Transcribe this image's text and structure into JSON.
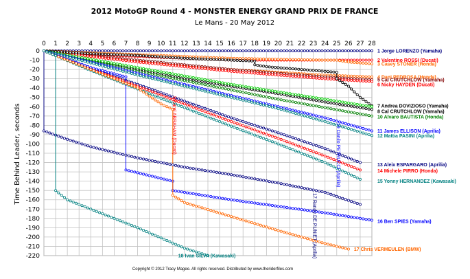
{
  "chart_data": {
    "type": "line",
    "title": "2012 MotoGP Round 4 - MONSTER ENERGY GRAND PRIX DE FRANCE",
    "subtitle": "Le Mans - 20 May 2012",
    "ylabel": "Time Behind Leader, seconds",
    "xlabel": "",
    "xlim": [
      0,
      28
    ],
    "ylim": [
      -220,
      0
    ],
    "x_ticks": [
      "0",
      "1",
      "2",
      "3",
      "4",
      "5",
      "6",
      "7",
      "8",
      "9",
      "10",
      "11",
      "12",
      "13",
      "14",
      "15",
      "16",
      "17",
      "18",
      "19",
      "20",
      "21",
      "22",
      "23",
      "24",
      "25",
      "26",
      "27",
      "28"
    ],
    "y_ticks": [
      "0",
      "-10",
      "-20",
      "-30",
      "-40",
      "-50",
      "-60",
      "-70",
      "-80",
      "-90",
      "-100",
      "-110",
      "-120",
      "-130",
      "-140",
      "-150",
      "-160",
      "-170",
      "-180",
      "-190",
      "-200",
      "-210",
      "-220"
    ],
    "grid": true,
    "legend_placement": "right, at end of each line",
    "footer": "Copyright © 2012 Tracy Magee. All rights reserved. Distributed by www.theriderfiles.com",
    "series": [
      {
        "name": "1 Jorge LORENZO (Yamaha)",
        "color": "#000080",
        "label_lap": 28,
        "label_value": 0,
        "points": [
          [
            0,
            0
          ],
          [
            28,
            0
          ]
        ]
      },
      {
        "name": "2 Valentino ROSSI (Ducati)",
        "color": "#ff0000",
        "label_lap": 28,
        "label_value": -10,
        "points": [
          [
            0,
            0
          ],
          [
            4,
            -4
          ],
          [
            8,
            -6
          ],
          [
            12,
            -8
          ],
          [
            16,
            -10
          ],
          [
            20,
            -10
          ],
          [
            24,
            -10
          ],
          [
            28,
            -10
          ]
        ]
      },
      {
        "name": "3 Casey STONER (Honda)",
        "color": "#ff6600",
        "label_lap": 28,
        "label_value": -14,
        "points": [
          [
            0,
            0
          ],
          [
            4,
            -2
          ],
          [
            8,
            -4
          ],
          [
            12,
            -6
          ],
          [
            16,
            -8
          ],
          [
            20,
            -9
          ],
          [
            24,
            -10
          ],
          [
            25,
            -10
          ],
          [
            26,
            -12
          ],
          [
            28,
            -14
          ]
        ]
      },
      {
        "name": "4 Dani PEDROSA (Honda)",
        "color": "#ff6600",
        "label_lap": 28,
        "label_value": -28,
        "points": [
          [
            0,
            0
          ],
          [
            4,
            -6
          ],
          [
            8,
            -11
          ],
          [
            12,
            -16
          ],
          [
            16,
            -20
          ],
          [
            20,
            -23
          ],
          [
            24,
            -26
          ],
          [
            28,
            -28
          ]
        ]
      },
      {
        "name": "5 Cal CRUTCHLOW (Yamaha)",
        "color": "#800000",
        "label_lap": 28,
        "label_value": -31,
        "points": [
          [
            0,
            0
          ],
          [
            4,
            -5
          ],
          [
            8,
            -10
          ],
          [
            12,
            -15
          ],
          [
            16,
            -20
          ],
          [
            20,
            -24
          ],
          [
            24,
            -28
          ],
          [
            28,
            -31
          ]
        ]
      },
      {
        "name": "6 Nicky HAYDEN (Ducati)",
        "color": "#ff0000",
        "label_lap": 28,
        "label_value": -36,
        "points": [
          [
            0,
            0
          ],
          [
            4,
            -6
          ],
          [
            8,
            -12
          ],
          [
            12,
            -17
          ],
          [
            16,
            -22
          ],
          [
            20,
            -26
          ],
          [
            24,
            -30
          ],
          [
            28,
            -33
          ]
        ]
      },
      {
        "name": "7 Andrea DOVIZIOSO (Yamaha)",
        "color": "#000000",
        "label_lap": 28,
        "label_value": -59,
        "points": [
          [
            0,
            0
          ],
          [
            4,
            -3
          ],
          [
            8,
            -5
          ],
          [
            12,
            -8
          ],
          [
            16,
            -10
          ],
          [
            18,
            -11
          ],
          [
            18,
            -15
          ],
          [
            19,
            -17
          ],
          [
            25,
            -23
          ],
          [
            25,
            -30
          ],
          [
            26,
            -38
          ],
          [
            27,
            -50
          ],
          [
            28,
            -59
          ]
        ]
      },
      {
        "name": "8 Cal CRUTCHLOW (Yamaha)",
        "color": "#000000",
        "label_lap": 28,
        "label_value": -65,
        "points": [
          [
            0,
            0
          ],
          [
            4,
            -10
          ],
          [
            8,
            -20
          ],
          [
            12,
            -30
          ],
          [
            16,
            -38
          ],
          [
            20,
            -46
          ],
          [
            24,
            -55
          ],
          [
            28,
            -63
          ]
        ]
      },
      {
        "name": "10 Alvaro BAUTISTA (Honda)",
        "color": "#008000",
        "label_lap": 28,
        "label_value": -71,
        "points": [
          [
            0,
            0
          ],
          [
            4,
            -11
          ],
          [
            8,
            -22
          ],
          [
            12,
            -32
          ],
          [
            16,
            -42
          ],
          [
            20,
            -52
          ],
          [
            24,
            -61
          ],
          [
            28,
            -70
          ]
        ]
      },
      {
        "name": "green2",
        "color": "#00cc00",
        "label_lap": null,
        "label_value": null,
        "points": [
          [
            0,
            0
          ],
          [
            4,
            -9
          ],
          [
            8,
            -18
          ],
          [
            12,
            -27
          ],
          [
            16,
            -36
          ],
          [
            20,
            -44
          ],
          [
            24,
            -52
          ],
          [
            28,
            -60
          ]
        ]
      },
      {
        "name": "11 James ELLISON (Aprilia)",
        "color": "#0000ff",
        "label_lap": 28,
        "label_value": -86,
        "points": [
          [
            0,
            0
          ],
          [
            4,
            -12
          ],
          [
            8,
            -24
          ],
          [
            12,
            -36
          ],
          [
            16,
            -48
          ],
          [
            20,
            -60
          ],
          [
            24,
            -72
          ],
          [
            28,
            -86
          ]
        ]
      },
      {
        "name": "12 Mattia PASINI (Aprilia)",
        "color": "#008080",
        "label_lap": 28,
        "label_value": -91,
        "points": [
          [
            0,
            0
          ],
          [
            4,
            -13
          ],
          [
            8,
            -26
          ],
          [
            12,
            -38
          ],
          [
            16,
            -50
          ],
          [
            20,
            -62
          ],
          [
            24,
            -76
          ],
          [
            28,
            -91
          ]
        ]
      },
      {
        "name": "13 Aleix ESPARGARO (Aprilia)",
        "color": "#000080",
        "label_lap": 28,
        "label_value": -122,
        "points": [
          [
            0,
            0
          ],
          [
            4,
            -18
          ],
          [
            8,
            -36
          ],
          [
            12,
            -54
          ],
          [
            16,
            -72
          ],
          [
            20,
            -88
          ],
          [
            24,
            -105
          ],
          [
            27,
            -120
          ]
        ]
      },
      {
        "name": "14 Michele PIRRO (Honda)",
        "color": "#ff0000",
        "label_lap": 28,
        "label_value": -129,
        "points": [
          [
            0,
            0
          ],
          [
            4,
            -19
          ],
          [
            8,
            -38
          ],
          [
            12,
            -57
          ],
          [
            16,
            -76
          ],
          [
            20,
            -94
          ],
          [
            24,
            -113
          ],
          [
            27,
            -128
          ]
        ]
      },
      {
        "name": "15 Yonny HERNANDEZ (Kawasaki)",
        "color": "#008080",
        "label_lap": 28,
        "label_value": -140,
        "points": [
          [
            0,
            0
          ],
          [
            4,
            -21
          ],
          [
            8,
            -41
          ],
          [
            12,
            -61
          ],
          [
            16,
            -81
          ],
          [
            20,
            -100
          ],
          [
            24,
            -120
          ],
          [
            27,
            -138
          ]
        ]
      },
      {
        "name": "16 Ben SPIES (Yamaha)",
        "color": "#0000ff",
        "label_lap": 28,
        "label_value": -183,
        "points": [
          [
            0,
            0
          ],
          [
            4,
            -18
          ],
          [
            7,
            -28
          ],
          [
            7,
            -128
          ],
          [
            11,
            -140
          ],
          [
            11,
            -150
          ],
          [
            16,
            -160
          ],
          [
            20,
            -167
          ],
          [
            24,
            -174
          ],
          [
            28,
            -182
          ]
        ]
      },
      {
        "name": "17 Chris VERMEULEN (BMW)",
        "color": "#ff6600",
        "label_lap": 26,
        "label_value": -213,
        "points": [
          [
            0,
            0
          ],
          [
            4,
            -20
          ],
          [
            8,
            -40
          ],
          [
            10,
            -57
          ],
          [
            11,
            -63
          ],
          [
            11,
            -155
          ],
          [
            12,
            -163
          ],
          [
            16,
            -178
          ],
          [
            20,
            -193
          ],
          [
            24,
            -207
          ],
          [
            26,
            -213
          ]
        ]
      },
      {
        "name": "Fast lap leader",
        "color": "#000080",
        "label_lap": null,
        "label_value": null,
        "points": [
          [
            0,
            0
          ],
          [
            0,
            -86
          ],
          [
            2,
            -95
          ],
          [
            4,
            -103
          ],
          [
            8,
            -115
          ],
          [
            12,
            -125
          ],
          [
            16,
            -133
          ],
          [
            20,
            -142
          ],
          [
            24,
            -152
          ],
          [
            27,
            -165
          ]
        ]
      },
      {
        "name": "18 Ivan SILVA (Kawasaki)",
        "color": "#008080",
        "label_lap": 11,
        "label_value": -220,
        "points": [
          [
            0,
            0
          ],
          [
            1,
            -5
          ],
          [
            1,
            -150
          ],
          [
            2,
            -160
          ],
          [
            4,
            -170
          ],
          [
            8,
            -190
          ],
          [
            12,
            -212
          ],
          [
            14,
            -220
          ]
        ]
      }
    ],
    "rotated_labels": [
      {
        "text": "9 Karel ABRAHAM (Ducati)",
        "color": "#ff0000",
        "lap": 11,
        "value": -80
      },
      {
        "text": "19 Danilo PETRUCCI (Aprilia)",
        "color": "#0000ff",
        "lap": 25,
        "value": -112
      },
      {
        "text": "17 Randy DE PUNIET (Aprilia)",
        "color": "#000080",
        "lap": 23,
        "value": -188
      }
    ]
  }
}
